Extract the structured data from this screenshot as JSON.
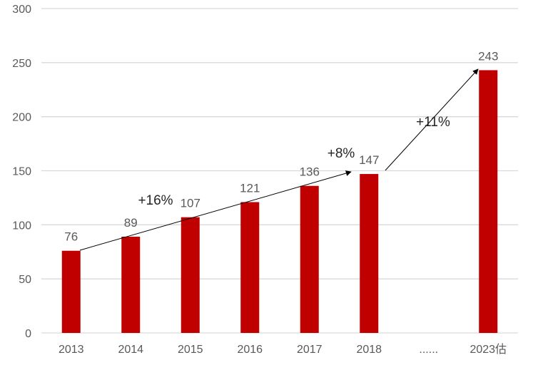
{
  "chart_data": {
    "type": "bar",
    "categories": [
      "2013",
      "2014",
      "2015",
      "2016",
      "2017",
      "2018",
      "......",
      "2023估"
    ],
    "values": [
      76,
      89,
      107,
      121,
      136,
      147,
      null,
      243
    ],
    "data_labels": [
      "76",
      "89",
      "107",
      "121",
      "136",
      "147",
      "",
      "243"
    ],
    "title": "",
    "xlabel": "",
    "ylabel": "",
    "ylim": [
      0,
      300
    ],
    "yticks": [
      0,
      50,
      100,
      150,
      200,
      250,
      300
    ],
    "grid": true,
    "legend": "none",
    "bar_color": "#C00000",
    "annotations": [
      {
        "text": "+16%",
        "arrow_from": "2013",
        "arrow_to": "2018"
      },
      {
        "text": "+8%",
        "arrow_from": "2013",
        "arrow_to": "2018"
      },
      {
        "text": "+11%",
        "arrow_from": "2018",
        "arrow_to": "2023估"
      }
    ]
  }
}
